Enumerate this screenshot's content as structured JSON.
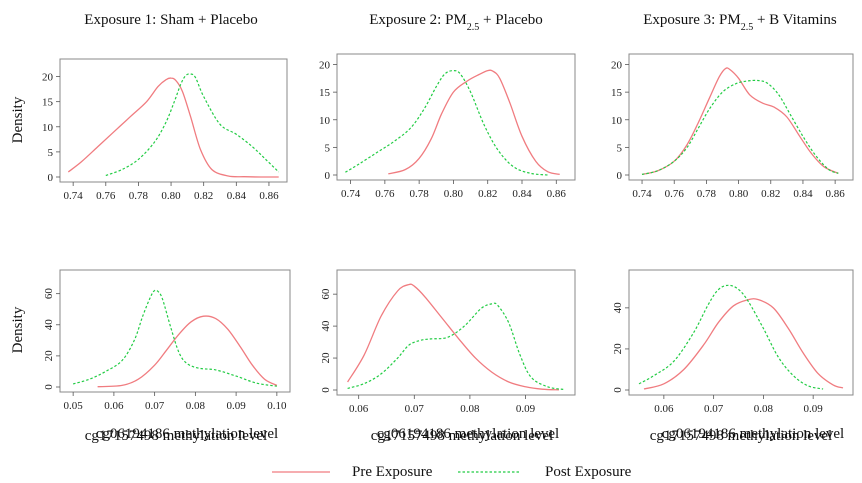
{
  "colors": {
    "pre": "#f07c80",
    "post": "#22cc44"
  },
  "legend": {
    "pre_label": "Pre Exposure",
    "post_label": "Post Exposure",
    "placement": "bottom-center"
  },
  "y_label": "Density",
  "chart_data": [
    {
      "type": "line",
      "title": "Exposure 1: Sham + Placebo",
      "xlabel": "",
      "ylabel": "Density",
      "xlim": [
        0.735,
        0.868
      ],
      "ylim": [
        0,
        22.5
      ],
      "xticks": [
        0.74,
        0.76,
        0.78,
        0.8,
        0.82,
        0.84,
        0.86
      ],
      "xtick_labels": [
        "0.74",
        "0.76",
        "0.78",
        "0.80",
        "0.82",
        "0.84",
        "0.86"
      ],
      "yticks": [
        0,
        5,
        10,
        15,
        20
      ],
      "series": [
        {
          "name": "Pre Exposure",
          "x": [
            0.737,
            0.745,
            0.755,
            0.765,
            0.775,
            0.785,
            0.792,
            0.797,
            0.8,
            0.803,
            0.807,
            0.812,
            0.818,
            0.825,
            0.835,
            0.845,
            0.855,
            0.866
          ],
          "y": [
            1,
            3,
            6,
            9,
            12,
            15,
            18,
            19.4,
            19.7,
            19.2,
            17,
            12,
            5.5,
            1.5,
            0.2,
            0.05,
            0,
            0
          ]
        },
        {
          "name": "Post Exposure",
          "x": [
            0.76,
            0.77,
            0.78,
            0.79,
            0.797,
            0.802,
            0.806,
            0.809,
            0.812,
            0.815,
            0.82,
            0.83,
            0.84,
            0.85,
            0.858,
            0.866
          ],
          "y": [
            0.3,
            1.5,
            3.5,
            7,
            11,
            15,
            18.5,
            20.2,
            20.5,
            19.8,
            16,
            10.5,
            8.5,
            6,
            3.5,
            1
          ]
        }
      ]
    },
    {
      "type": "line",
      "title": "Exposure 2: PM",
      "title_sub": "2.5",
      "title_rest": " + Placebo",
      "xlabel": "",
      "ylabel": "",
      "xlim": [
        0.735,
        0.868
      ],
      "ylim": [
        0,
        21
      ],
      "xticks": [
        0.74,
        0.76,
        0.78,
        0.8,
        0.82,
        0.84,
        0.86
      ],
      "xtick_labels": [
        "0.74",
        "0.76",
        "0.78",
        "0.80",
        "0.82",
        "0.84",
        "0.86"
      ],
      "yticks": [
        0,
        5,
        10,
        15,
        20
      ],
      "series": [
        {
          "name": "Pre Exposure",
          "x": [
            0.762,
            0.772,
            0.78,
            0.787,
            0.793,
            0.8,
            0.808,
            0.815,
            0.82,
            0.823,
            0.827,
            0.833,
            0.84,
            0.848,
            0.855,
            0.862
          ],
          "y": [
            0.2,
            1,
            3,
            6.5,
            11,
            15,
            17,
            18.2,
            18.9,
            18.8,
            17.5,
            13,
            7,
            2.5,
            0.6,
            0.1
          ]
        },
        {
          "name": "Post Exposure",
          "x": [
            0.737,
            0.745,
            0.755,
            0.765,
            0.775,
            0.783,
            0.79,
            0.795,
            0.8,
            0.804,
            0.81,
            0.818,
            0.826,
            0.835,
            0.845,
            0.855
          ],
          "y": [
            0.5,
            2,
            4,
            6,
            8.5,
            12,
            16,
            18.3,
            18.9,
            18.3,
            15,
            9,
            4.5,
            1.5,
            0.3,
            0
          ]
        }
      ]
    },
    {
      "type": "line",
      "title": "Exposure 3: PM",
      "title_sub": "2.5",
      "title_rest": " + B Vitamins",
      "xlabel": "",
      "ylabel": "",
      "xlim": [
        0.735,
        0.868
      ],
      "ylim": [
        0,
        21
      ],
      "xticks": [
        0.74,
        0.76,
        0.78,
        0.8,
        0.82,
        0.84,
        0.86
      ],
      "xtick_labels": [
        "0.74",
        "0.76",
        "0.78",
        "0.80",
        "0.82",
        "0.84",
        "0.86"
      ],
      "yticks": [
        0,
        5,
        10,
        15,
        20
      ],
      "series": [
        {
          "name": "Pre Exposure",
          "x": [
            0.74,
            0.75,
            0.76,
            0.768,
            0.775,
            0.782,
            0.788,
            0.792,
            0.795,
            0.8,
            0.807,
            0.815,
            0.822,
            0.83,
            0.838,
            0.845,
            0.853,
            0.862
          ],
          "y": [
            0.1,
            0.8,
            2.5,
            5.5,
            9.5,
            14,
            17.8,
            19.3,
            19,
            17.5,
            14.5,
            13,
            12.3,
            10.5,
            7,
            4,
            1.5,
            0.3
          ]
        },
        {
          "name": "Post Exposure",
          "x": [
            0.74,
            0.75,
            0.76,
            0.768,
            0.775,
            0.782,
            0.79,
            0.798,
            0.805,
            0.812,
            0.818,
            0.825,
            0.832,
            0.84,
            0.848,
            0.856,
            0.862
          ],
          "y": [
            0.1,
            0.8,
            2.5,
            5,
            8.5,
            12,
            15,
            16.5,
            17,
            17.1,
            16.6,
            14.5,
            11,
            7,
            3.5,
            1,
            0.3
          ]
        }
      ]
    },
    {
      "type": "line",
      "title": "",
      "xlabel": "cg06194186 methylation level",
      "ylabel": "Density",
      "xlim": [
        0.048,
        0.102
      ],
      "ylim": [
        0,
        72
      ],
      "xticks": [
        0.05,
        0.06,
        0.07,
        0.08,
        0.09,
        0.1
      ],
      "xtick_labels": [
        "0.05",
        "0.06",
        "0.07",
        "0.08",
        "0.09",
        "0.10"
      ],
      "yticks": [
        0,
        20,
        40,
        60
      ],
      "series": [
        {
          "name": "Pre Exposure",
          "x": [
            0.056,
            0.062,
            0.066,
            0.07,
            0.073,
            0.076,
            0.079,
            0.082,
            0.085,
            0.088,
            0.091,
            0.094,
            0.097,
            0.1
          ],
          "y": [
            0.2,
            1,
            5,
            14,
            24,
            34,
            42,
            45.5,
            44,
            37,
            26,
            14,
            5,
            1
          ]
        },
        {
          "name": "Post Exposure",
          "x": [
            0.05,
            0.054,
            0.058,
            0.062,
            0.065,
            0.067,
            0.069,
            0.07,
            0.071,
            0.072,
            0.074,
            0.076,
            0.078,
            0.081,
            0.085,
            0.09,
            0.095,
            0.1
          ],
          "y": [
            2,
            5,
            10,
            17,
            30,
            45,
            58,
            62,
            61,
            56,
            38,
            22,
            15,
            12,
            11,
            7,
            2.5,
            0.5
          ]
        }
      ]
    },
    {
      "type": "line",
      "title": "",
      "xlabel": "cg06194186 methylation level",
      "ylabel": "",
      "xlim": [
        0.057,
        0.098
      ],
      "ylim": [
        0,
        72
      ],
      "xticks": [
        0.06,
        0.07,
        0.08,
        0.09
      ],
      "xtick_labels": [
        "0.06",
        "0.07",
        "0.08",
        "0.09"
      ],
      "yticks": [
        0,
        20,
        40,
        60
      ],
      "series": [
        {
          "name": "Pre Exposure",
          "x": [
            0.058,
            0.061,
            0.064,
            0.067,
            0.069,
            0.07,
            0.072,
            0.075,
            0.078,
            0.081,
            0.084,
            0.087,
            0.09,
            0.093,
            0.096
          ],
          "y": [
            5,
            22,
            46,
            62,
            66,
            65,
            58,
            45,
            32,
            20,
            11,
            5,
            2,
            0.5,
            0.1
          ]
        },
        {
          "name": "Post Exposure",
          "x": [
            0.058,
            0.061,
            0.064,
            0.067,
            0.069,
            0.071,
            0.073,
            0.076,
            0.079,
            0.082,
            0.084,
            0.085,
            0.087,
            0.089,
            0.091,
            0.094,
            0.097
          ],
          "y": [
            1,
            4,
            10,
            20,
            28,
            31,
            32,
            33,
            40,
            51,
            54,
            53,
            42,
            22,
            8,
            2,
            0.3
          ]
        }
      ]
    },
    {
      "type": "line",
      "title": "",
      "xlabel": "cg06194186 methylation level",
      "ylabel": "",
      "xlim": [
        0.054,
        0.097
      ],
      "ylim": [
        0,
        56
      ],
      "xticks": [
        0.06,
        0.07,
        0.08,
        0.09
      ],
      "xtick_labels": [
        "0.06",
        "0.07",
        "0.08",
        "0.09"
      ],
      "yticks": [
        0,
        20,
        40
      ],
      "series": [
        {
          "name": "Pre Exposure",
          "x": [
            0.056,
            0.06,
            0.064,
            0.068,
            0.071,
            0.074,
            0.077,
            0.079,
            0.082,
            0.085,
            0.088,
            0.091,
            0.094,
            0.096
          ],
          "y": [
            0.5,
            3,
            10,
            22,
            33,
            41,
            44,
            44,
            40,
            30,
            18,
            8,
            2.5,
            1
          ]
        },
        {
          "name": "Post Exposure",
          "x": [
            0.055,
            0.058,
            0.062,
            0.066,
            0.069,
            0.071,
            0.073,
            0.075,
            0.077,
            0.08,
            0.083,
            0.086,
            0.089,
            0.092
          ],
          "y": [
            3,
            7,
            14,
            28,
            42,
            49,
            51,
            49,
            43,
            30,
            16,
            7,
            2,
            0.5
          ]
        }
      ]
    }
  ],
  "bottom_xlabel": "cg17157498 methylation level"
}
